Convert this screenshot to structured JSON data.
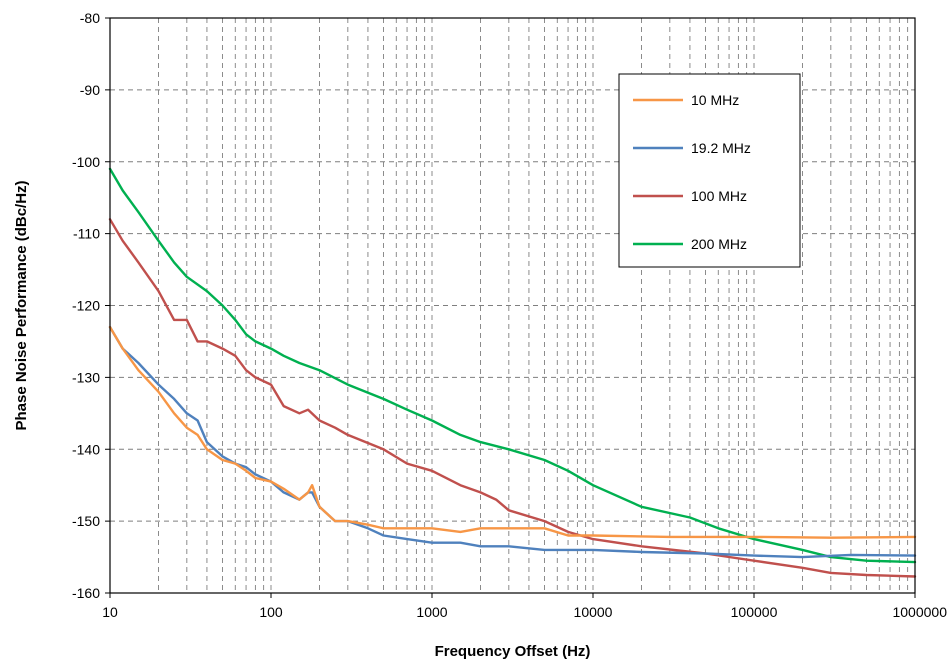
{
  "chart_data": {
    "type": "line",
    "title": "",
    "xlabel": "Frequency Offset (Hz)",
    "ylabel": "Phase Noise Performance (dBc/Hz)",
    "x_scale": "log",
    "xlim": [
      10,
      1000000
    ],
    "ylim": [
      -160,
      -80
    ],
    "x_ticks": [
      10,
      100,
      1000,
      10000,
      100000,
      1000000
    ],
    "x_tick_labels": [
      "10",
      "100",
      "1000",
      "10000",
      "100000",
      "1000000"
    ],
    "y_ticks": [
      -80,
      -90,
      -100,
      -110,
      -120,
      -130,
      -140,
      -150,
      -160
    ],
    "y_tick_labels": [
      "-80",
      "-90",
      "-100",
      "-110",
      "-120",
      "-130",
      "-140",
      "-150",
      "-160"
    ],
    "grid": true,
    "legend_position": "top-right",
    "series": [
      {
        "name": "10 MHz",
        "color": "#F79646",
        "points": [
          [
            10,
            -123
          ],
          [
            12,
            -126
          ],
          [
            15,
            -129
          ],
          [
            20,
            -132
          ],
          [
            25,
            -135
          ],
          [
            30,
            -137
          ],
          [
            35,
            -138
          ],
          [
            40,
            -140
          ],
          [
            50,
            -141.5
          ],
          [
            60,
            -142
          ],
          [
            70,
            -143
          ],
          [
            80,
            -144
          ],
          [
            100,
            -144.5
          ],
          [
            120,
            -145.5
          ],
          [
            150,
            -147
          ],
          [
            170,
            -146
          ],
          [
            180,
            -145
          ],
          [
            200,
            -148
          ],
          [
            250,
            -150
          ],
          [
            300,
            -150
          ],
          [
            400,
            -150.5
          ],
          [
            500,
            -151
          ],
          [
            700,
            -151
          ],
          [
            1000,
            -151
          ],
          [
            1500,
            -151.5
          ],
          [
            2000,
            -151
          ],
          [
            3000,
            -151
          ],
          [
            5000,
            -151
          ],
          [
            7000,
            -152
          ],
          [
            10000,
            -152
          ],
          [
            30000,
            -152.2
          ],
          [
            100000,
            -152.2
          ],
          [
            300000,
            -152.3
          ],
          [
            1000000,
            -152.2
          ]
        ]
      },
      {
        "name": "19.2 MHz",
        "color": "#4F81BD",
        "points": [
          [
            10,
            -123
          ],
          [
            12,
            -126
          ],
          [
            15,
            -128
          ],
          [
            20,
            -131
          ],
          [
            25,
            -133
          ],
          [
            30,
            -135
          ],
          [
            35,
            -136
          ],
          [
            40,
            -139
          ],
          [
            50,
            -141
          ],
          [
            60,
            -142
          ],
          [
            70,
            -142.5
          ],
          [
            80,
            -143.5
          ],
          [
            100,
            -144.5
          ],
          [
            120,
            -146
          ],
          [
            150,
            -147
          ],
          [
            170,
            -146
          ],
          [
            180,
            -146
          ],
          [
            200,
            -148
          ],
          [
            250,
            -150
          ],
          [
            300,
            -150
          ],
          [
            400,
            -151
          ],
          [
            500,
            -152
          ],
          [
            700,
            -152.5
          ],
          [
            1000,
            -153
          ],
          [
            1500,
            -153
          ],
          [
            2000,
            -153.5
          ],
          [
            3000,
            -153.5
          ],
          [
            5000,
            -154
          ],
          [
            10000,
            -154
          ],
          [
            20000,
            -154.3
          ],
          [
            50000,
            -154.5
          ],
          [
            100000,
            -154.8
          ],
          [
            200000,
            -155
          ],
          [
            400000,
            -154.7
          ],
          [
            1000000,
            -154.8
          ]
        ]
      },
      {
        "name": "100 MHz",
        "color": "#C0504D",
        "points": [
          [
            10,
            -108
          ],
          [
            12,
            -111
          ],
          [
            15,
            -114
          ],
          [
            20,
            -118
          ],
          [
            25,
            -122
          ],
          [
            30,
            -122
          ],
          [
            35,
            -125
          ],
          [
            40,
            -125
          ],
          [
            50,
            -126
          ],
          [
            60,
            -127
          ],
          [
            70,
            -129
          ],
          [
            80,
            -130
          ],
          [
            100,
            -131
          ],
          [
            120,
            -134
          ],
          [
            150,
            -135
          ],
          [
            170,
            -134.5
          ],
          [
            200,
            -136
          ],
          [
            250,
            -137
          ],
          [
            300,
            -138
          ],
          [
            500,
            -140
          ],
          [
            700,
            -142
          ],
          [
            1000,
            -143
          ],
          [
            1500,
            -145
          ],
          [
            2000,
            -146
          ],
          [
            2500,
            -147
          ],
          [
            3000,
            -148.5
          ],
          [
            5000,
            -150
          ],
          [
            7000,
            -151.5
          ],
          [
            10000,
            -152.5
          ],
          [
            20000,
            -153.5
          ],
          [
            50000,
            -154.5
          ],
          [
            100000,
            -155.5
          ],
          [
            200000,
            -156.5
          ],
          [
            300000,
            -157.2
          ],
          [
            500000,
            -157.5
          ],
          [
            1000000,
            -157.7
          ]
        ]
      },
      {
        "name": "200 MHz",
        "color": "#00B050",
        "points": [
          [
            10,
            -101
          ],
          [
            12,
            -104
          ],
          [
            15,
            -107
          ],
          [
            20,
            -111
          ],
          [
            25,
            -114
          ],
          [
            30,
            -116
          ],
          [
            40,
            -118
          ],
          [
            50,
            -120
          ],
          [
            60,
            -122
          ],
          [
            70,
            -124
          ],
          [
            80,
            -125
          ],
          [
            100,
            -126
          ],
          [
            120,
            -127
          ],
          [
            150,
            -128
          ],
          [
            200,
            -129
          ],
          [
            300,
            -131
          ],
          [
            500,
            -133
          ],
          [
            700,
            -134.5
          ],
          [
            1000,
            -136
          ],
          [
            1500,
            -138
          ],
          [
            2000,
            -139
          ],
          [
            3000,
            -140
          ],
          [
            5000,
            -141.5
          ],
          [
            7000,
            -143
          ],
          [
            10000,
            -145
          ],
          [
            20000,
            -148
          ],
          [
            40000,
            -149.5
          ],
          [
            60000,
            -151
          ],
          [
            100000,
            -152.5
          ],
          [
            200000,
            -154
          ],
          [
            300000,
            -155
          ],
          [
            500000,
            -155.5
          ],
          [
            1000000,
            -155.7
          ]
        ]
      }
    ]
  }
}
